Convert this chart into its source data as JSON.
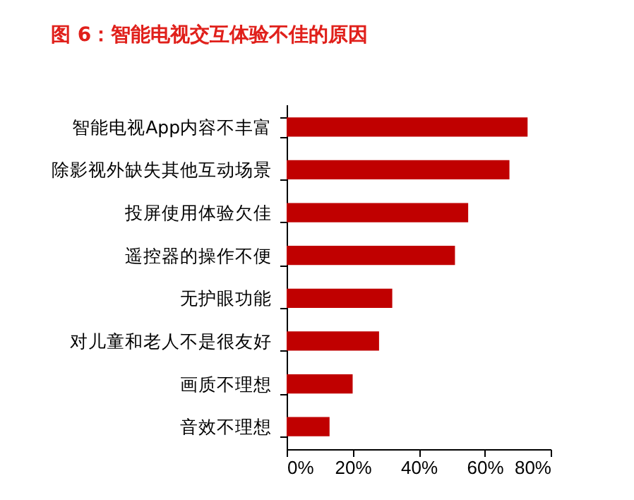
{
  "chart_data": {
    "type": "bar",
    "orientation": "horizontal",
    "title": "图 6：智能电视交互体验不佳的原因",
    "categories": [
      "智能电视App内容不丰富",
      "除影视外缺失其他互动场景",
      "投屏使用体验欠佳",
      "遥控器的操作不便",
      "无护眼功能",
      "对儿童和老人不是很友好",
      "画质不理想",
      "音效不理想"
    ],
    "values": [
      73,
      67.5,
      55,
      51,
      32,
      28,
      20,
      13
    ],
    "color": "#c00000",
    "xlim": [
      0,
      80
    ],
    "xticks": [
      {
        "value": 0,
        "label": "0%"
      },
      {
        "value": 20,
        "label": "20%"
      },
      {
        "value": 40,
        "label": "40%"
      },
      {
        "value": 60,
        "label": "60%"
      },
      {
        "value": 80,
        "label": "80%"
      }
    ],
    "grid": false
  }
}
